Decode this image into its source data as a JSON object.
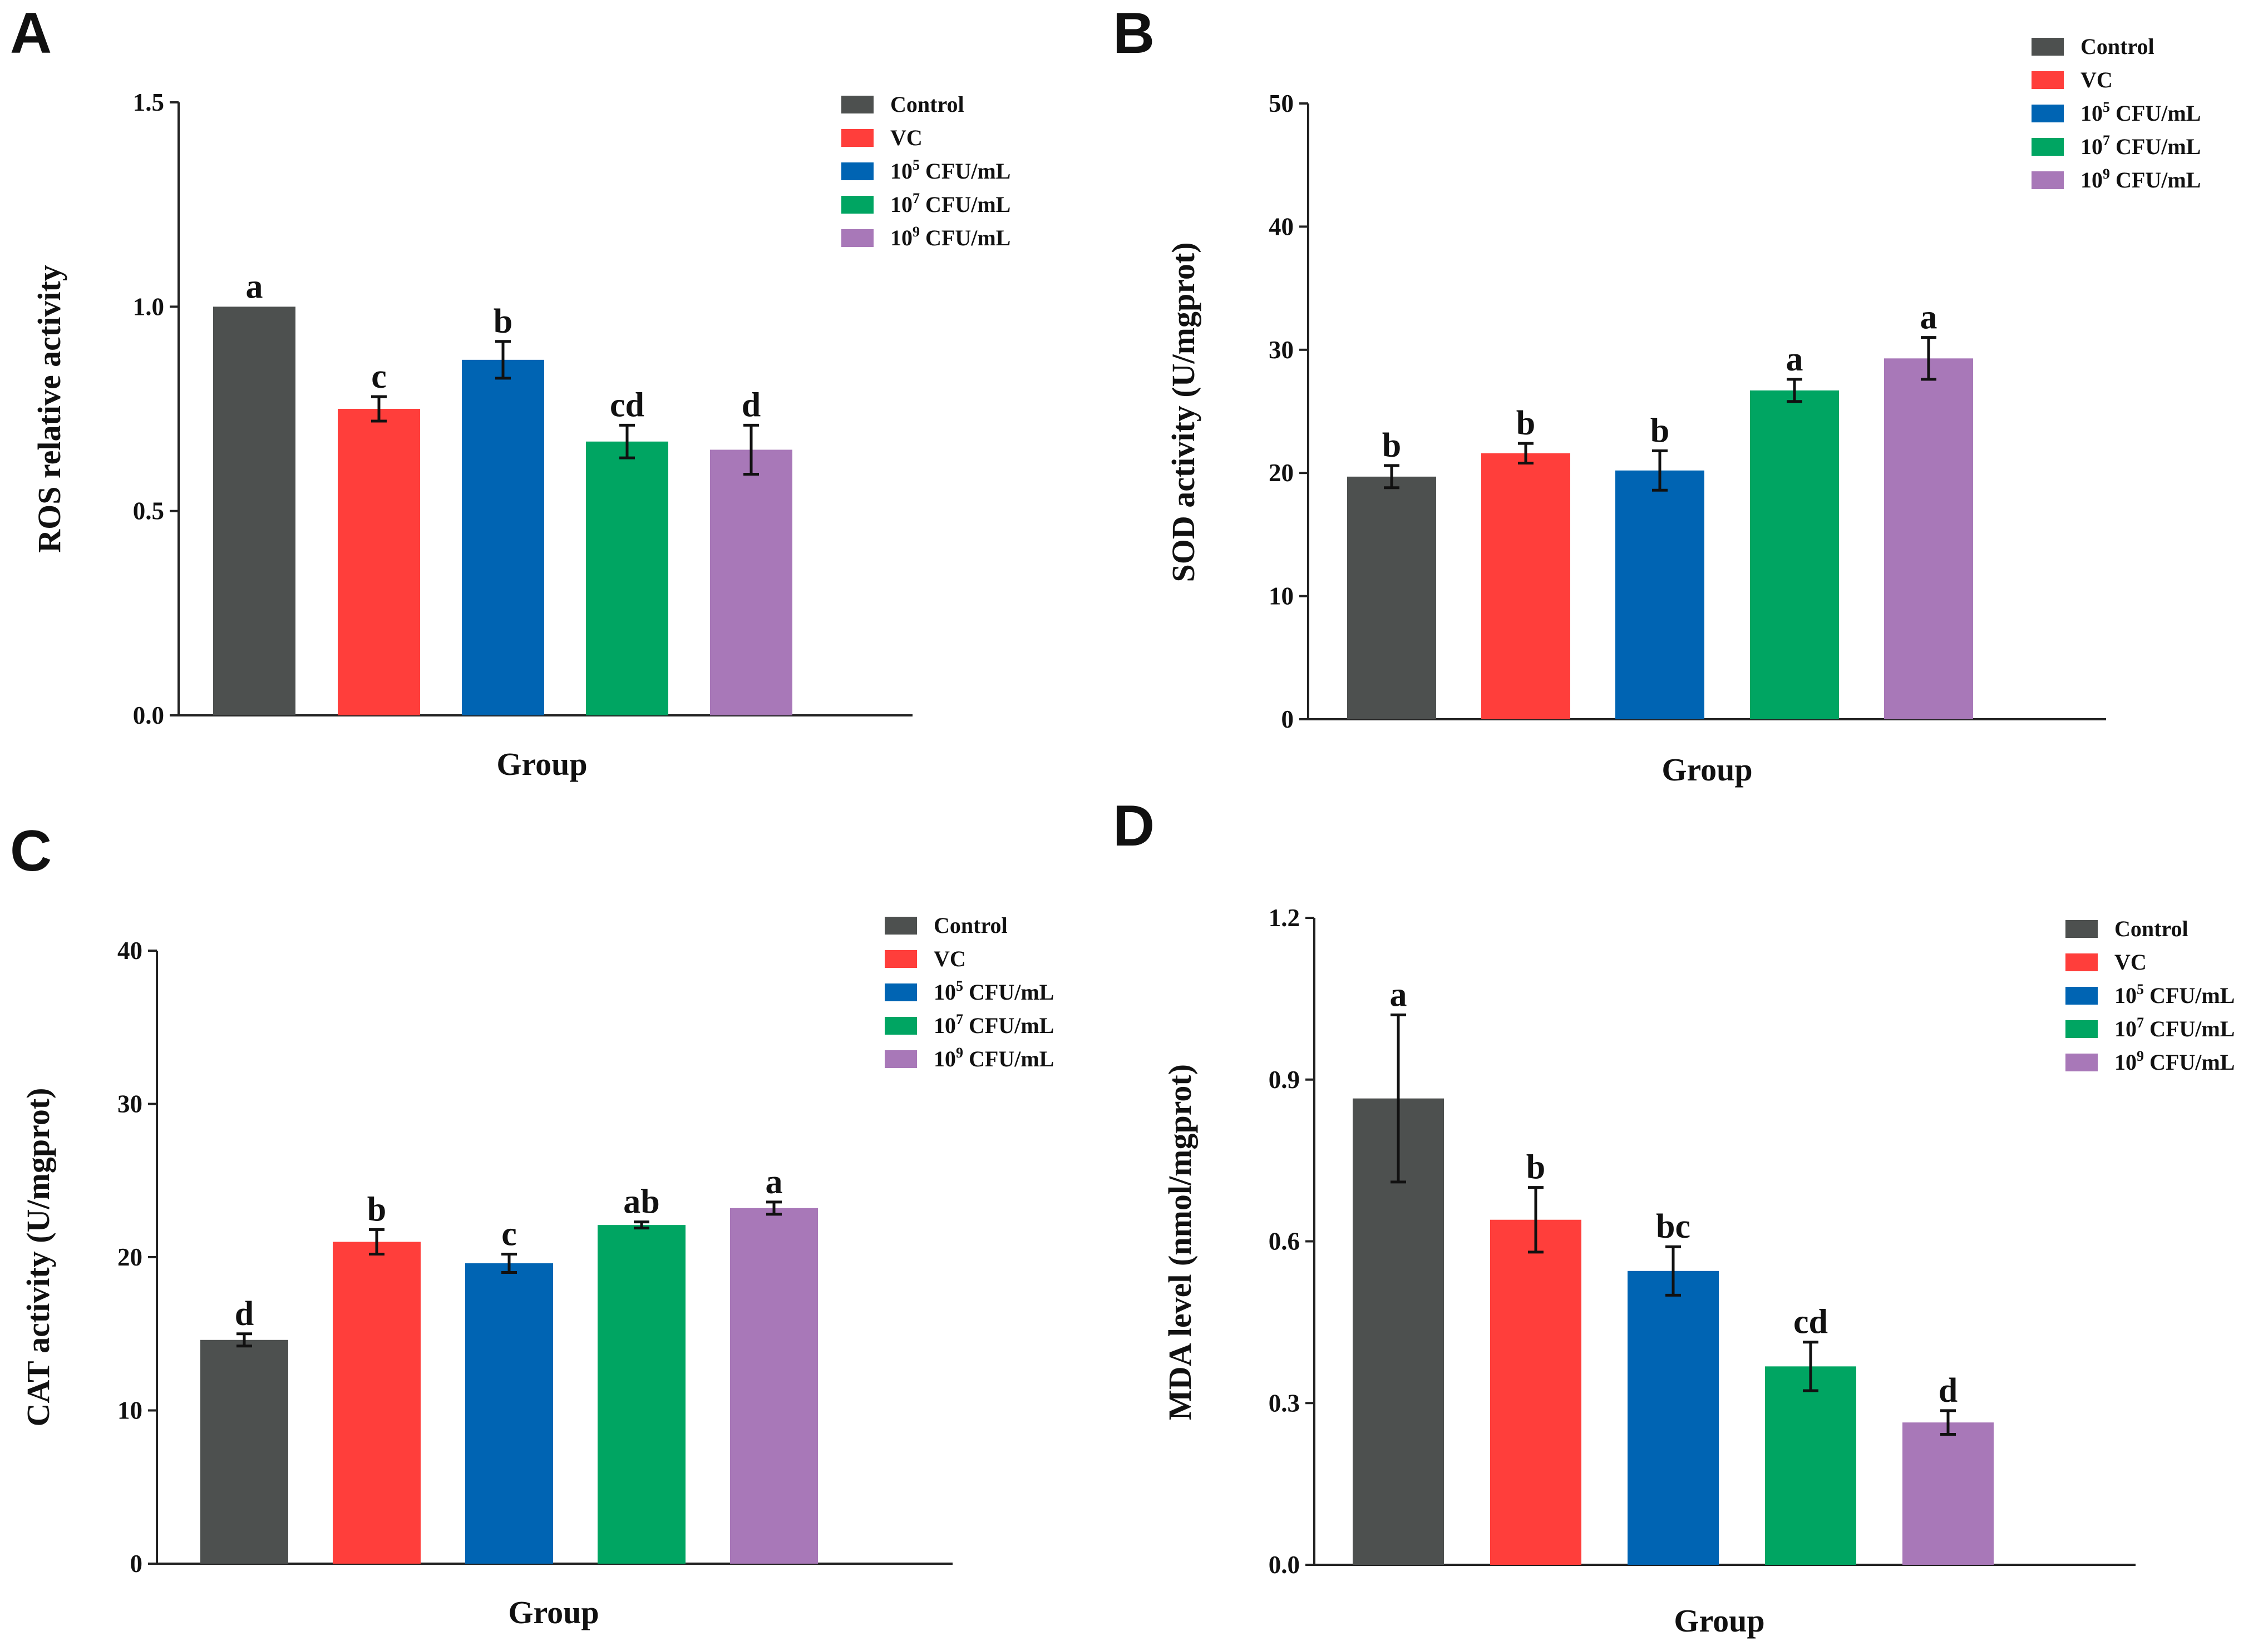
{
  "figure": {
    "group_colors": [
      "#4d504f",
      "#ff3e3b",
      "#0064b3",
      "#00a562",
      "#a878b8"
    ],
    "legend": [
      {
        "base": "Control",
        "sup": "",
        "unit": ""
      },
      {
        "base": "VC",
        "sup": "",
        "unit": ""
      },
      {
        "base": "10",
        "sup": "5",
        "unit": " CFU/mL"
      },
      {
        "base": "10",
        "sup": "7",
        "unit": " CFU/mL"
      },
      {
        "base": "10",
        "sup": "9",
        "unit": " CFU/mL"
      }
    ]
  },
  "chart_data": [
    {
      "panel": "A",
      "type": "bar",
      "xlabel": "Group",
      "ylabel": "ROS relative activity",
      "ylim": [
        0,
        1.5
      ],
      "yticks": [
        "0.0",
        "0.5",
        "1.0",
        "1.5"
      ],
      "categories": [
        "Control",
        "VC",
        "10^5 CFU/mL",
        "10^7 CFU/mL",
        "10^9 CFU/mL"
      ],
      "values": [
        1.0,
        0.75,
        0.87,
        0.67,
        0.65
      ],
      "errors": [
        0,
        0.03,
        0.045,
        0.04,
        0.06
      ],
      "significance": [
        "a",
        "c",
        "b",
        "cd",
        "d"
      ],
      "legend_position": "top-right"
    },
    {
      "panel": "B",
      "type": "bar",
      "xlabel": "Group",
      "ylabel": "SOD activity (U/mgprot)",
      "ylim": [
        0,
        50
      ],
      "yticks": [
        "0",
        "10",
        "20",
        "30",
        "40",
        "50"
      ],
      "categories": [
        "Control",
        "VC",
        "10^5 CFU/mL",
        "10^7 CFU/mL",
        "10^9 CFU/mL"
      ],
      "values": [
        19.7,
        21.6,
        20.2,
        26.7,
        29.3
      ],
      "errors": [
        0.9,
        0.8,
        1.6,
        0.9,
        1.7
      ],
      "significance": [
        "b",
        "b",
        "b",
        "a",
        "a"
      ],
      "legend_position": "top-right"
    },
    {
      "panel": "C",
      "type": "bar",
      "xlabel": "Group",
      "ylabel": "CAT activity (U/mgprot)",
      "ylim": [
        0,
        40
      ],
      "yticks": [
        "0",
        "10",
        "20",
        "30",
        "40"
      ],
      "categories": [
        "Control",
        "VC",
        "10^5 CFU/mL",
        "10^7 CFU/mL",
        "10^9 CFU/mL"
      ],
      "values": [
        14.6,
        21.0,
        19.6,
        22.1,
        23.2
      ],
      "errors": [
        0.4,
        0.8,
        0.6,
        0.2,
        0.4
      ],
      "significance": [
        "d",
        "b",
        "c",
        "ab",
        "a"
      ],
      "legend_position": "top-right"
    },
    {
      "panel": "D",
      "type": "bar",
      "xlabel": "Group",
      "ylabel": "MDA level (nmol/mgprot)",
      "ylim": [
        0,
        1.2
      ],
      "yticks": [
        "0.0",
        "0.3",
        "0.6",
        "0.9",
        "1.2"
      ],
      "categories": [
        "Control",
        "VC",
        "10^5 CFU/mL",
        "10^7 CFU/mL",
        "10^9 CFU/mL"
      ],
      "values": [
        0.865,
        0.64,
        0.545,
        0.368,
        0.264
      ],
      "errors": [
        0.155,
        0.06,
        0.045,
        0.045,
        0.022
      ],
      "significance": [
        "a",
        "b",
        "bc",
        "cd",
        "d"
      ],
      "legend_position": "top-right"
    }
  ]
}
